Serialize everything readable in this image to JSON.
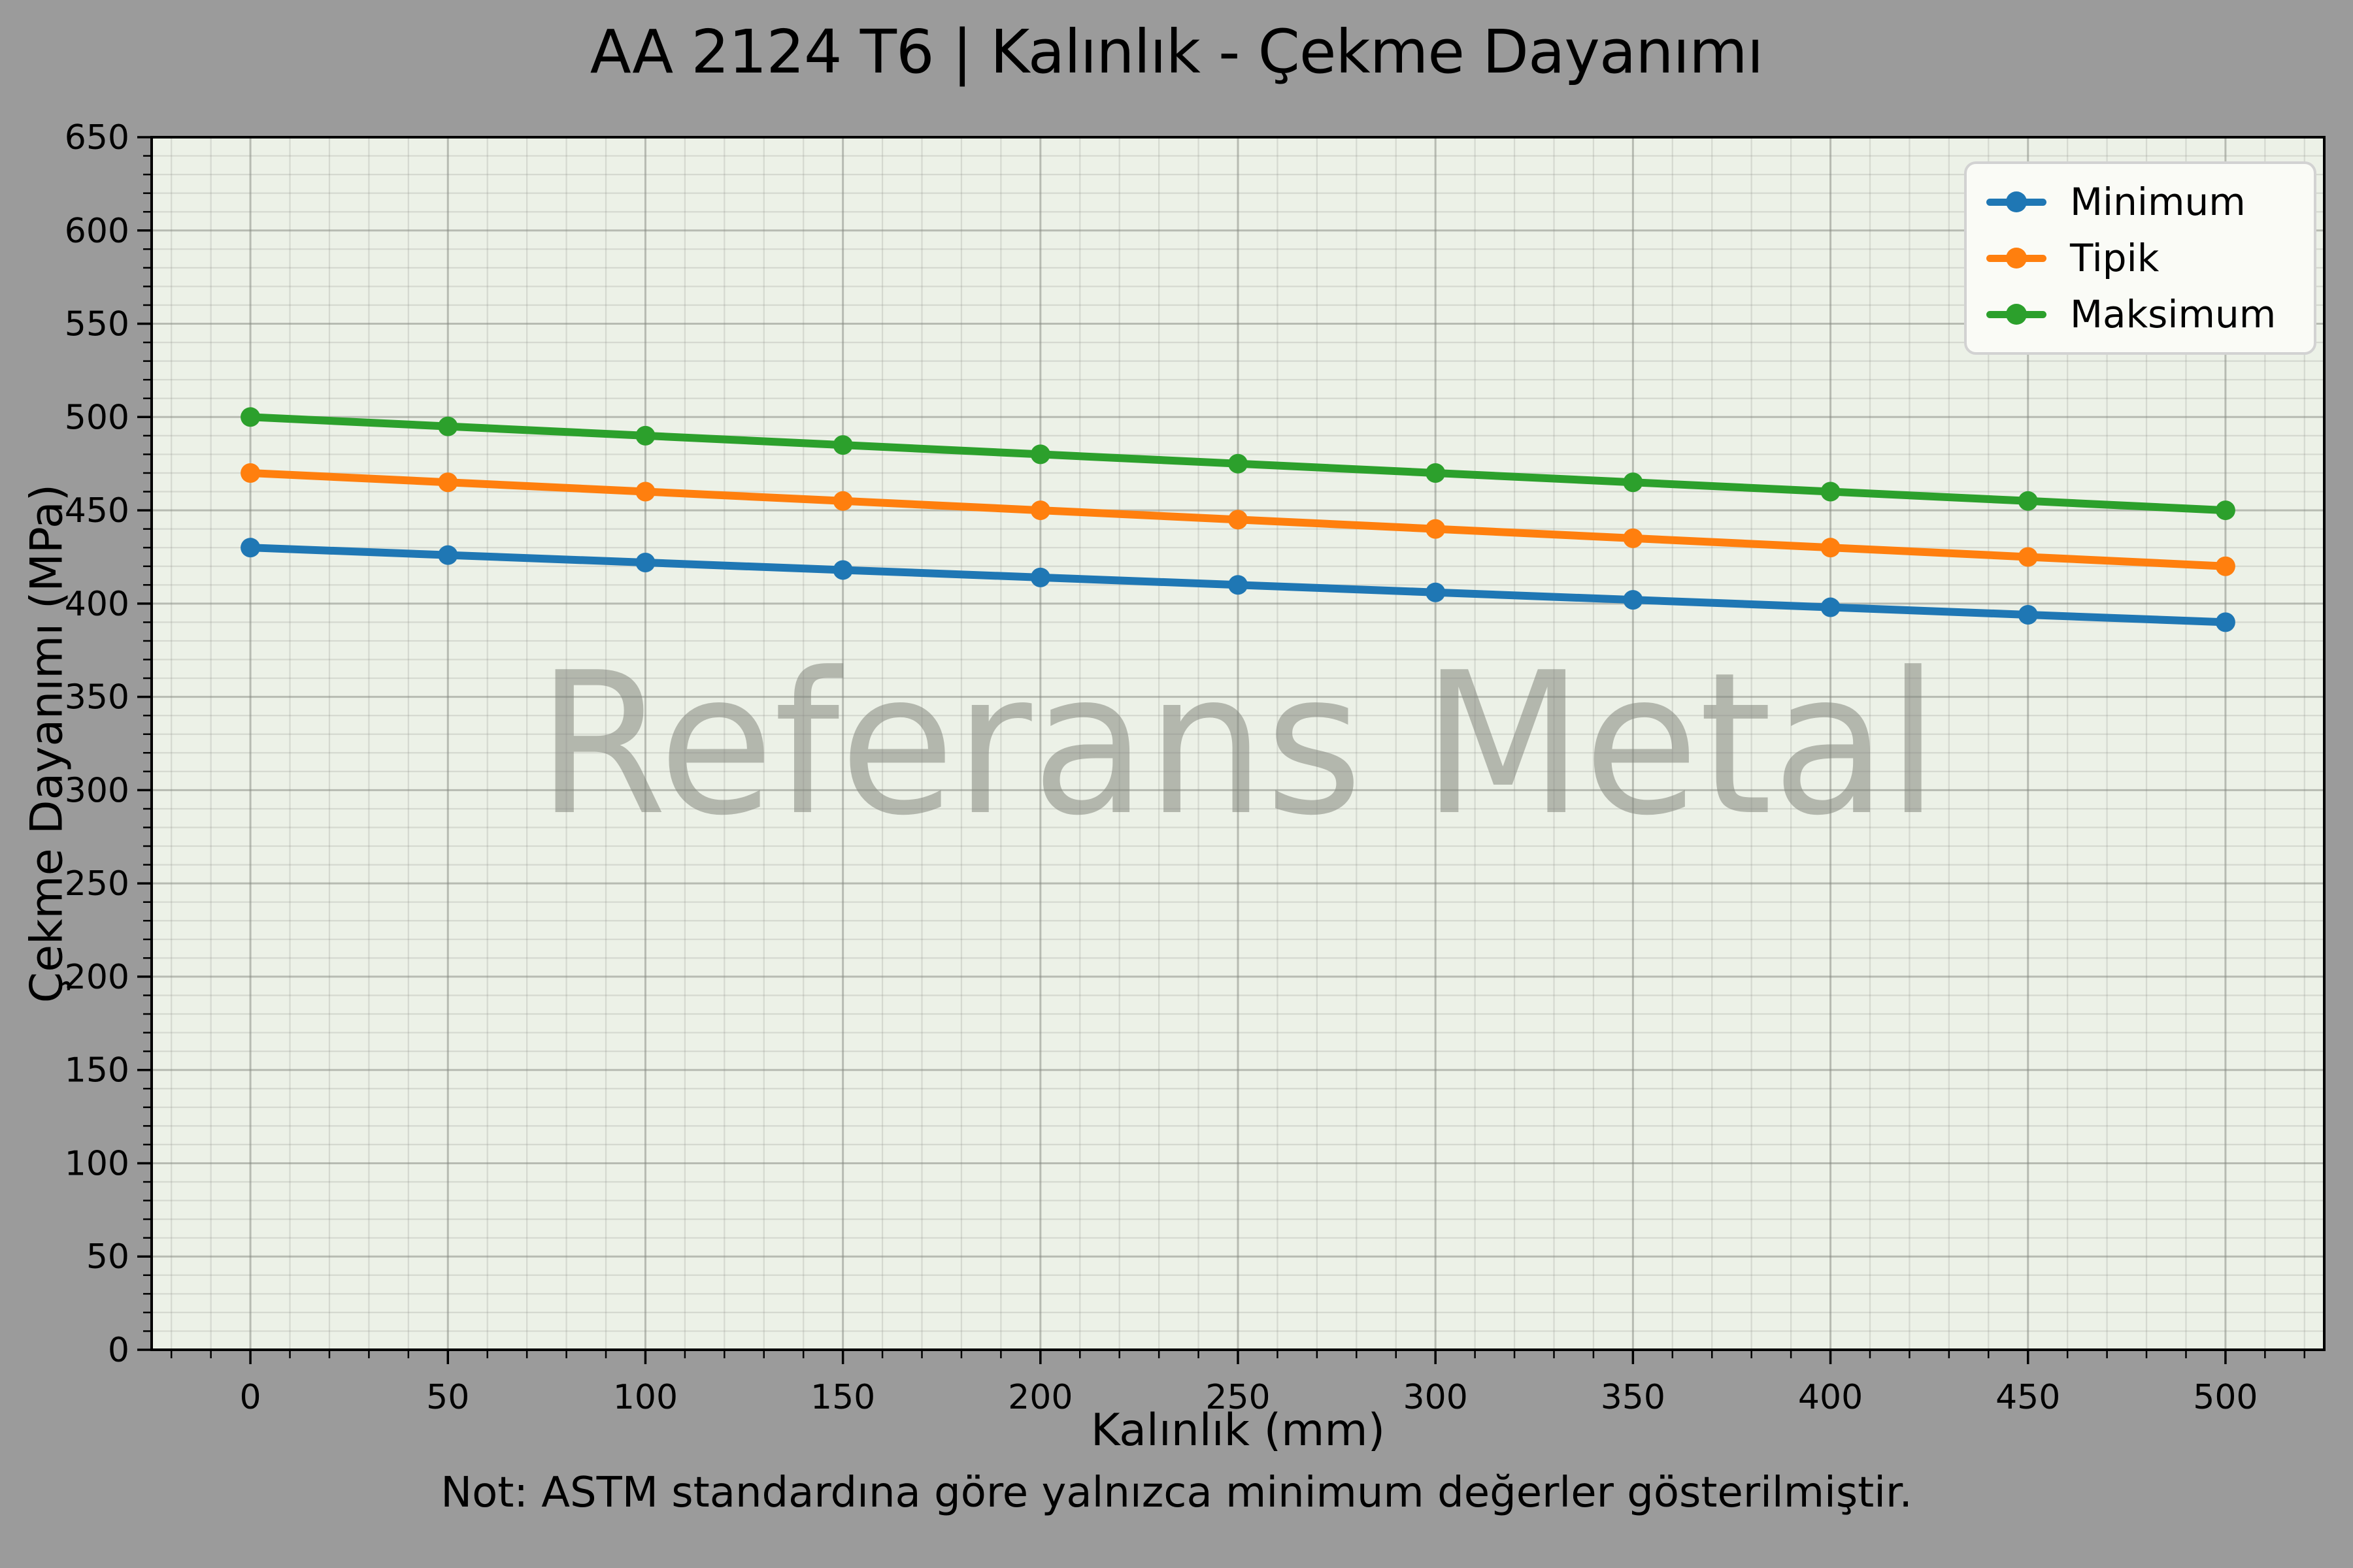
{
  "title": "AA 2124 T6 | Kalınlık - Çekme Dayanımı",
  "note": "Not: ASTM standardına göre yalnızca minimum değerler gösterilmiştir.",
  "watermark": "Referans Metal",
  "palette": {
    "figure_bg": "#9b9b9b",
    "plot_bg": "#ecf1e7",
    "grid_major": "rgba(130,134,126,0.50)",
    "grid_minor": "rgba(130,134,126,0.22)",
    "axis_color": "#000000",
    "text_color": "#000000",
    "watermark_color": "#b3b7ad",
    "legend_bg": "#fafbf6",
    "legend_border": "#d2d2d2"
  },
  "chart_data": {
    "type": "line",
    "title": "AA 2124 T6 | Kalınlık - Çekme Dayanımı",
    "x": [
      0,
      50,
      100,
      150,
      200,
      250,
      300,
      350,
      400,
      450,
      500
    ],
    "series": [
      {
        "name": "Minimum",
        "color": "#1f77b4",
        "values": [
          430,
          426,
          422,
          418,
          414,
          410,
          406,
          402,
          398,
          394,
          390
        ]
      },
      {
        "name": "Tipik",
        "color": "#ff7f0e",
        "values": [
          470,
          465,
          460,
          455,
          450,
          445,
          440,
          435,
          430,
          425,
          420
        ]
      },
      {
        "name": "Maksimum",
        "color": "#2ca02c",
        "values": [
          500,
          495,
          490,
          485,
          480,
          475,
          470,
          465,
          460,
          455,
          450
        ]
      }
    ],
    "xlabel": "Kalınlık (mm)",
    "ylabel": "Çekme Dayanımı (MPa)",
    "xlim": [
      -25,
      525
    ],
    "ylim": [
      0,
      650
    ],
    "x_ticks": [
      0,
      50,
      100,
      150,
      200,
      250,
      300,
      350,
      400,
      450,
      500
    ],
    "y_ticks": [
      0,
      50,
      100,
      150,
      200,
      250,
      300,
      350,
      400,
      450,
      500,
      550,
      600,
      650
    ],
    "minor_unit": 10,
    "grid": true,
    "legend_position": "upper right"
  }
}
